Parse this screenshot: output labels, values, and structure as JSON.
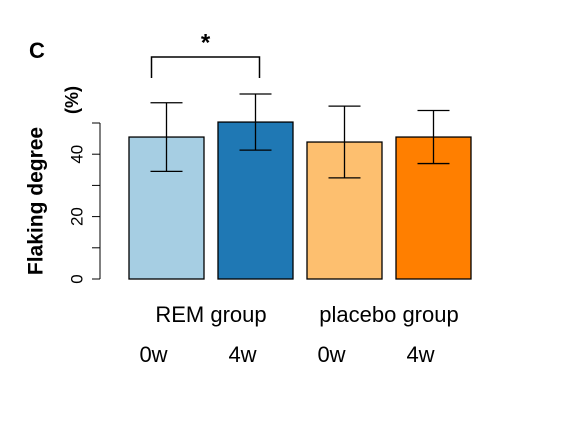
{
  "chart_data": {
    "type": "bar",
    "panel_label": "C",
    "y_label": "Flaking degree",
    "y_unit": "(%)",
    "categories": [
      "0w",
      "4w",
      "0w",
      "4w"
    ],
    "groups": [
      {
        "label": "REM group",
        "categories": [
          0,
          1
        ]
      },
      {
        "label": "placebo group",
        "categories": [
          2,
          3
        ]
      }
    ],
    "values": [
      45.5,
      50.3,
      43.9,
      45.5
    ],
    "errors": [
      11,
      9,
      11.5,
      8.5
    ],
    "colors": [
      "#a6cee3",
      "#1f78b4",
      "#fdbf6f",
      "#ff7f00"
    ],
    "ylim": [
      0,
      50
    ],
    "yticks": [
      0,
      20,
      40
    ],
    "minor_yticks": [
      10,
      30,
      50
    ],
    "significance": [
      {
        "categories": [
          0,
          1
        ],
        "label": "*"
      }
    ]
  }
}
